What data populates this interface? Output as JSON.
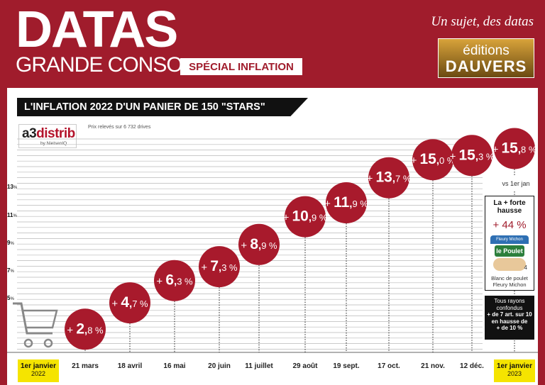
{
  "header": {
    "brand_line1": "DATAS",
    "brand_line2": "GRANDE CONSO",
    "special_label": "SPÉCIAL INFLATION",
    "tagline": "Un sujet, des datas",
    "logo_line1": "éditions",
    "logo_line2": "DAUVERS"
  },
  "source": {
    "logo_pre": "a3",
    "logo_main": "distrib",
    "logo_sub": "by NielsenIQ",
    "note": "Prix relevés sur 6 732 drives"
  },
  "sidebar": {
    "vs_label": "vs 1er jan",
    "highlight_head": "La + forte hausse",
    "highlight_value": "+ 44 %",
    "product_brand": "Fleury Michon",
    "product_label": "le Poulet",
    "product_count": "4",
    "product_caption": "Blanc de poulet Fleury Michon",
    "all_line1": "Tous rayons confondus",
    "all_line2": "+ de 7 art. sur 10",
    "all_line3": "en hausse de",
    "all_line4": "+ de 10 %"
  },
  "dates_extra": {
    "start_year": "2022",
    "end_year": "2023"
  },
  "colors": {
    "brand": "#a01c2c",
    "bubble": "#a81a2c",
    "highlight": "#f5e400"
  },
  "chart_data": {
    "type": "line",
    "title": "L'INFLATION 2022 D'UN PANIER DE 150 \"STARS\"",
    "categories": [
      "1er janvier 2022",
      "21 mars",
      "18 avril",
      "16 mai",
      "20 juin",
      "11 juillet",
      "29 août",
      "19 sept.",
      "17 oct.",
      "21 nov.",
      "12 déc.",
      "1er janvier 2023"
    ],
    "category_labels": [
      "1er janvier",
      "21 mars",
      "18 avril",
      "16 mai",
      "20 juin",
      "11 juillet",
      "29 août",
      "19 sept.",
      "17 oct.",
      "21 nov.",
      "12 déc.",
      "1er janvier"
    ],
    "series": [
      {
        "name": "Inflation vs 1er janvier (%)",
        "values": [
          null,
          2.8,
          4.7,
          6.3,
          7.3,
          8.9,
          10.9,
          11.9,
          13.7,
          15.0,
          15.3,
          15.8
        ],
        "int_labels": [
          "",
          "2",
          "4",
          "6",
          "7",
          "8",
          "10",
          "11",
          "13",
          "15",
          "15",
          "15"
        ],
        "dec_labels": [
          "",
          "8",
          "7",
          "3",
          "3",
          "9",
          "9",
          "9",
          "7",
          "0",
          "3",
          "8"
        ]
      }
    ],
    "ytick_labels": [
      "5",
      "7",
      "9",
      "11",
      "13"
    ],
    "ytick_values": [
      5,
      7,
      9,
      11,
      13
    ],
    "ylim": [
      1,
      16
    ],
    "unit": "%",
    "plus_sign": "+"
  }
}
